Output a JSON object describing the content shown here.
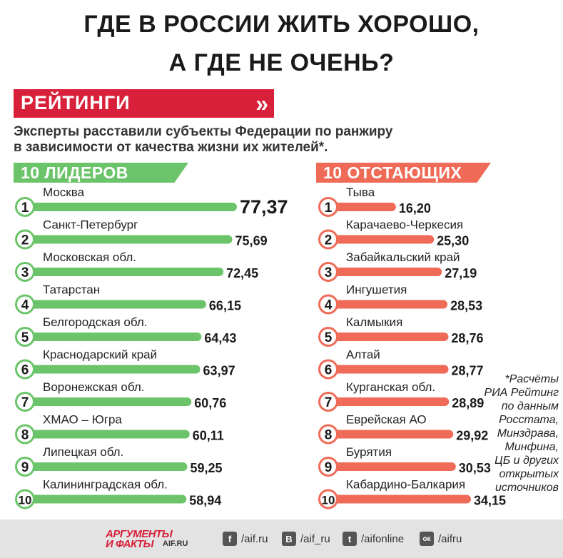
{
  "header": {
    "title_line1": "ГДЕ В РОССИИ ЖИТЬ ХОРОШО,",
    "title_line2": "А ГДЕ НЕ ОЧЕНЬ?",
    "rating_label": "РЕЙТИНГИ",
    "rating_arrows": "»",
    "subtitle_line1": "Эксперты расставили субъекты Федерации по ранжиру",
    "subtitle_line2": "в зависимости от качества жизни их жителей*."
  },
  "colors": {
    "brand_red": "#d8203a",
    "leaders_green": "#6cc46a",
    "laggards_red": "#ef6a57"
  },
  "chart_data": [
    {
      "type": "bar",
      "title": "10 ЛИДЕРОВ",
      "orientation": "horizontal",
      "ranks": [
        "1",
        "2",
        "3",
        "4",
        "5",
        "6",
        "7",
        "8",
        "9",
        "10"
      ],
      "categories": [
        "Москва",
        "Санкт-Петербург",
        "Московская обл.",
        "Татарстан",
        "Белгородская обл.",
        "Краснодарский край",
        "Воронежская обл.",
        "ХМАО – Югра",
        "Липецкая обл.",
        "Калининградская обл."
      ],
      "values": [
        77.37,
        75.69,
        72.45,
        66.15,
        64.43,
        63.97,
        60.76,
        60.11,
        59.25,
        58.94
      ],
      "value_labels": [
        "77,37",
        "75,69",
        "72,45",
        "66,15",
        "64,43",
        "63,97",
        "60,76",
        "60,11",
        "59,25",
        "58,94"
      ],
      "color": "#6cc46a"
    },
    {
      "type": "bar",
      "title": "10 ОТСТАЮЩИХ",
      "orientation": "horizontal",
      "ranks": [
        "1",
        "2",
        "3",
        "4",
        "5",
        "6",
        "7",
        "8",
        "9",
        "10"
      ],
      "categories": [
        "Тыва",
        "Карачаево-Черкесия",
        "Забайкальский край",
        "Ингушетия",
        "Калмыкия",
        "Алтай",
        "Курганская обл.",
        "Еврейская АО",
        "Бурятия",
        "Кабардино-Балкария"
      ],
      "values": [
        16.2,
        25.3,
        27.19,
        28.53,
        28.76,
        28.77,
        28.89,
        29.92,
        30.53,
        34.15
      ],
      "value_labels": [
        "16,20",
        "25,30",
        "27,19",
        "28,53",
        "28,76",
        "28,77",
        "28,89",
        "29,92",
        "30,53",
        "34,15"
      ],
      "color": "#ef6a57"
    }
  ],
  "footnote": [
    "*Расчёты",
    "РИА Рейтинг",
    "по данным",
    "Росстата,",
    "Минздрава,",
    "Минфина,",
    "ЦБ и других",
    "открытых",
    "источников"
  ],
  "footer": {
    "logo_top": "АРГУМЕНТЫ",
    "logo_bottom": "И ФАКТЫ",
    "logo_small": "AIF.RU",
    "social": [
      {
        "icon": "facebook-icon",
        "glyph": "f",
        "label": "/aif.ru"
      },
      {
        "icon": "vk-icon",
        "glyph": "В",
        "label": "/aif_ru"
      },
      {
        "icon": "twitter-icon",
        "glyph": "t",
        "label": "/aifonline"
      },
      {
        "icon": "odnoklassniki-icon",
        "glyph": "ок",
        "label": "/aifru"
      }
    ]
  }
}
